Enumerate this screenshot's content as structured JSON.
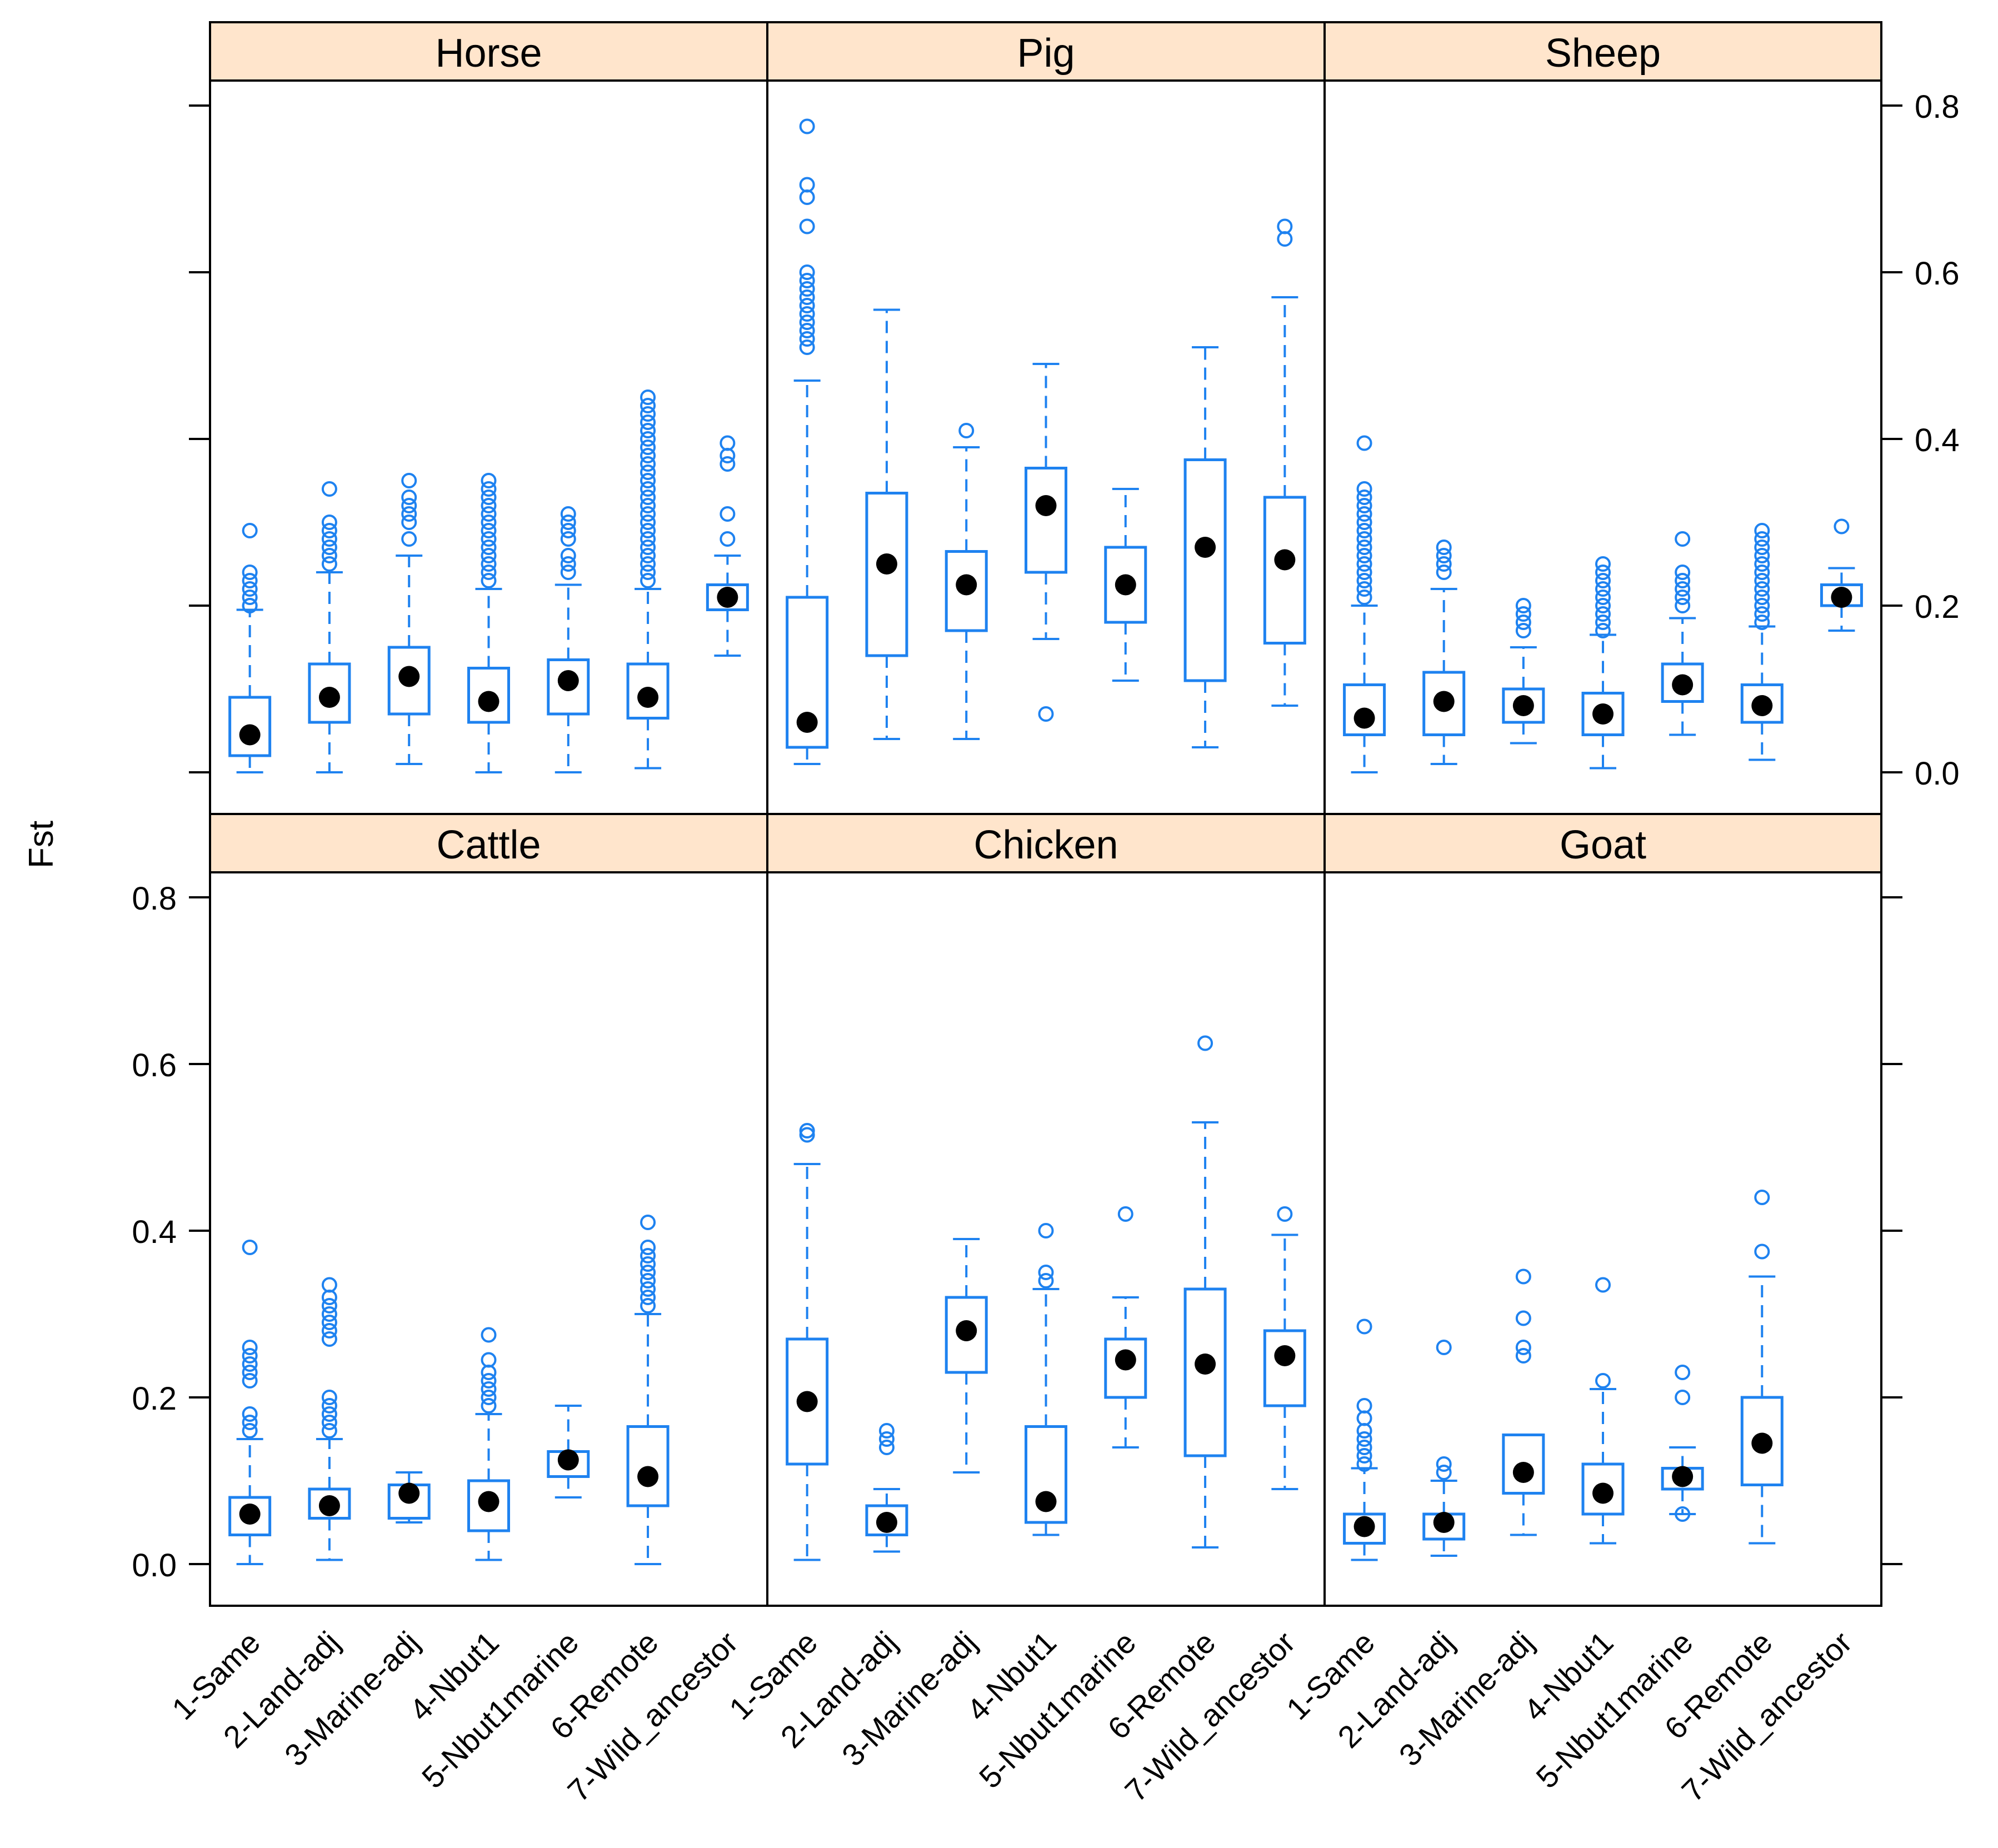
{
  "chart_data": {
    "type": "boxplot",
    "layout": "trellis 3x2",
    "ylabel": "Fst",
    "ylim": [
      -0.05,
      0.82
    ],
    "yticks": [
      0.0,
      0.2,
      0.4,
      0.6,
      0.8
    ],
    "ytick_labels": [
      "0.0",
      "0.2",
      "0.4",
      "0.6",
      "0.8"
    ],
    "categories": [
      "1-Same",
      "2-Land-adj",
      "3-Marine-adj",
      "4-Nbut1",
      "5-Nbut1marine",
      "6-Remote",
      "7-Wild_ancestor"
    ],
    "colors": {
      "box": "#1e82f0",
      "median": "#000000",
      "strip": "#ffe5cc",
      "frame": "#000000"
    },
    "panels": [
      {
        "name": "Horse",
        "boxes": [
          {
            "min": 0.0,
            "q1": 0.02,
            "med": 0.045,
            "q3": 0.09,
            "max": 0.195,
            "out": [
              0.2,
              0.2,
              0.21,
              0.22,
              0.23,
              0.24,
              0.29
            ]
          },
          {
            "min": 0.0,
            "q1": 0.06,
            "med": 0.09,
            "q3": 0.13,
            "max": 0.24,
            "out": [
              0.25,
              0.26,
              0.27,
              0.28,
              0.29,
              0.3,
              0.34
            ]
          },
          {
            "min": 0.01,
            "q1": 0.07,
            "med": 0.115,
            "q3": 0.15,
            "max": 0.26,
            "out": [
              0.28,
              0.3,
              0.31,
              0.32,
              0.33,
              0.35
            ]
          },
          {
            "min": 0.0,
            "q1": 0.06,
            "med": 0.085,
            "q3": 0.125,
            "max": 0.22,
            "out": [
              0.23,
              0.24,
              0.25,
              0.26,
              0.27,
              0.28,
              0.29,
              0.3,
              0.31,
              0.32,
              0.33,
              0.34,
              0.35
            ]
          },
          {
            "min": 0.0,
            "q1": 0.07,
            "med": 0.11,
            "q3": 0.135,
            "max": 0.225,
            "out": [
              0.24,
              0.25,
              0.26,
              0.28,
              0.29,
              0.3,
              0.31
            ]
          },
          {
            "min": 0.005,
            "q1": 0.065,
            "med": 0.09,
            "q3": 0.13,
            "max": 0.22,
            "out": [
              0.23,
              0.24,
              0.25,
              0.26,
              0.27,
              0.28,
              0.29,
              0.3,
              0.31,
              0.32,
              0.33,
              0.34,
              0.35,
              0.36,
              0.37,
              0.38,
              0.39,
              0.4,
              0.41,
              0.42,
              0.43,
              0.44,
              0.45
            ]
          },
          {
            "min": 0.14,
            "q1": 0.195,
            "med": 0.21,
            "q3": 0.225,
            "max": 0.26,
            "out": [
              0.28,
              0.31,
              0.37,
              0.38,
              0.395
            ]
          }
        ]
      },
      {
        "name": "Pig",
        "boxes": [
          {
            "min": 0.01,
            "q1": 0.03,
            "med": 0.06,
            "q3": 0.21,
            "max": 0.47,
            "out": [
              0.51,
              0.52,
              0.53,
              0.54,
              0.55,
              0.56,
              0.57,
              0.58,
              0.59,
              0.6,
              0.655,
              0.69,
              0.705,
              0.775
            ]
          },
          {
            "min": 0.04,
            "q1": 0.14,
            "med": 0.25,
            "q3": 0.335,
            "max": 0.555,
            "out": []
          },
          {
            "min": 0.04,
            "q1": 0.17,
            "med": 0.225,
            "q3": 0.265,
            "max": 0.39,
            "out": [
              0.41
            ]
          },
          {
            "min": 0.16,
            "q1": 0.24,
            "med": 0.32,
            "q3": 0.365,
            "max": 0.49,
            "out": [
              0.07
            ]
          },
          {
            "min": 0.11,
            "q1": 0.18,
            "med": 0.225,
            "q3": 0.27,
            "max": 0.34,
            "out": []
          },
          {
            "min": 0.03,
            "q1": 0.11,
            "med": 0.27,
            "q3": 0.375,
            "max": 0.51,
            "out": []
          },
          {
            "min": 0.08,
            "q1": 0.155,
            "med": 0.255,
            "q3": 0.33,
            "max": 0.57,
            "out": [
              0.64,
              0.655
            ]
          }
        ]
      },
      {
        "name": "Sheep",
        "boxes": [
          {
            "min": 0.0,
            "q1": 0.045,
            "med": 0.065,
            "q3": 0.105,
            "max": 0.2,
            "out": [
              0.21,
              0.22,
              0.23,
              0.24,
              0.25,
              0.26,
              0.27,
              0.28,
              0.29,
              0.3,
              0.31,
              0.32,
              0.33,
              0.34,
              0.395
            ]
          },
          {
            "min": 0.01,
            "q1": 0.045,
            "med": 0.085,
            "q3": 0.12,
            "max": 0.22,
            "out": [
              0.24,
              0.25,
              0.26,
              0.27
            ]
          },
          {
            "min": 0.035,
            "q1": 0.06,
            "med": 0.08,
            "q3": 0.1,
            "max": 0.15,
            "out": [
              0.17,
              0.18,
              0.19,
              0.2
            ]
          },
          {
            "min": 0.005,
            "q1": 0.045,
            "med": 0.07,
            "q3": 0.095,
            "max": 0.165,
            "out": [
              0.17,
              0.18,
              0.19,
              0.2,
              0.21,
              0.22,
              0.23,
              0.24,
              0.25
            ]
          },
          {
            "min": 0.045,
            "q1": 0.085,
            "med": 0.105,
            "q3": 0.13,
            "max": 0.185,
            "out": [
              0.2,
              0.21,
              0.22,
              0.23,
              0.24,
              0.28
            ]
          },
          {
            "min": 0.015,
            "q1": 0.06,
            "med": 0.08,
            "q3": 0.105,
            "max": 0.175,
            "out": [
              0.18,
              0.19,
              0.2,
              0.21,
              0.22,
              0.23,
              0.24,
              0.25,
              0.26,
              0.27,
              0.28,
              0.29
            ]
          },
          {
            "min": 0.17,
            "q1": 0.2,
            "med": 0.21,
            "q3": 0.225,
            "max": 0.245,
            "out": [
              0.295
            ]
          }
        ]
      },
      {
        "name": "Cattle",
        "boxes": [
          {
            "min": 0.0,
            "q1": 0.035,
            "med": 0.06,
            "q3": 0.08,
            "max": 0.15,
            "out": [
              0.16,
              0.17,
              0.18,
              0.22,
              0.23,
              0.24,
              0.25,
              0.26,
              0.38
            ]
          },
          {
            "min": 0.005,
            "q1": 0.055,
            "med": 0.07,
            "q3": 0.09,
            "max": 0.15,
            "out": [
              0.16,
              0.17,
              0.18,
              0.19,
              0.2,
              0.27,
              0.28,
              0.29,
              0.3,
              0.31,
              0.32,
              0.335
            ]
          },
          {
            "min": 0.05,
            "q1": 0.055,
            "med": 0.085,
            "q3": 0.095,
            "max": 0.11,
            "out": []
          },
          {
            "min": 0.005,
            "q1": 0.04,
            "med": 0.075,
            "q3": 0.1,
            "max": 0.18,
            "out": [
              0.19,
              0.2,
              0.21,
              0.22,
              0.23,
              0.245,
              0.275
            ]
          },
          {
            "min": 0.08,
            "q1": 0.105,
            "med": 0.125,
            "q3": 0.135,
            "max": 0.19,
            "out": []
          },
          {
            "min": 0.0,
            "q1": 0.07,
            "med": 0.105,
            "q3": 0.165,
            "max": 0.3,
            "out": [
              0.31,
              0.32,
              0.33,
              0.34,
              0.35,
              0.36,
              0.37,
              0.38,
              0.41
            ]
          },
          {
            "min": null,
            "q1": null,
            "med": null,
            "q3": null,
            "max": null,
            "out": []
          }
        ]
      },
      {
        "name": "Chicken",
        "boxes": [
          {
            "min": 0.005,
            "q1": 0.12,
            "med": 0.195,
            "q3": 0.27,
            "max": 0.48,
            "out": [
              0.515,
              0.52
            ]
          },
          {
            "min": 0.015,
            "q1": 0.035,
            "med": 0.05,
            "q3": 0.07,
            "max": 0.09,
            "out": [
              0.14,
              0.15,
              0.16
            ]
          },
          {
            "min": 0.11,
            "q1": 0.23,
            "med": 0.28,
            "q3": 0.32,
            "max": 0.39,
            "out": []
          },
          {
            "min": 0.035,
            "q1": 0.05,
            "med": 0.075,
            "q3": 0.165,
            "max": 0.33,
            "out": [
              0.34,
              0.35,
              0.4
            ]
          },
          {
            "min": 0.14,
            "q1": 0.2,
            "med": 0.245,
            "q3": 0.27,
            "max": 0.32,
            "out": [
              0.42
            ]
          },
          {
            "min": 0.02,
            "q1": 0.13,
            "med": 0.24,
            "q3": 0.33,
            "max": 0.53,
            "out": [
              0.625
            ]
          },
          {
            "min": 0.09,
            "q1": 0.19,
            "med": 0.25,
            "q3": 0.28,
            "max": 0.395,
            "out": [
              0.42
            ]
          }
        ]
      },
      {
        "name": "Goat",
        "boxes": [
          {
            "min": 0.005,
            "q1": 0.025,
            "med": 0.045,
            "q3": 0.06,
            "max": 0.115,
            "out": [
              0.12,
              0.13,
              0.14,
              0.15,
              0.16,
              0.175,
              0.19,
              0.285
            ]
          },
          {
            "min": 0.01,
            "q1": 0.03,
            "med": 0.05,
            "q3": 0.06,
            "max": 0.1,
            "out": [
              0.11,
              0.12,
              0.26
            ]
          },
          {
            "min": 0.035,
            "q1": 0.085,
            "med": 0.11,
            "q3": 0.155,
            "max": 0.155,
            "out": [
              0.25,
              0.26,
              0.295,
              0.345
            ]
          },
          {
            "min": 0.025,
            "q1": 0.06,
            "med": 0.085,
            "q3": 0.12,
            "max": 0.21,
            "out": [
              0.22,
              0.335
            ]
          },
          {
            "min": 0.06,
            "q1": 0.09,
            "med": 0.105,
            "q3": 0.115,
            "max": 0.14,
            "out": [
              0.2,
              0.23,
              0.06
            ]
          },
          {
            "min": 0.025,
            "q1": 0.095,
            "med": 0.145,
            "q3": 0.2,
            "max": 0.345,
            "out": [
              0.375,
              0.44
            ]
          },
          {
            "min": null,
            "q1": null,
            "med": null,
            "q3": null,
            "max": null,
            "out": []
          }
        ]
      }
    ]
  }
}
